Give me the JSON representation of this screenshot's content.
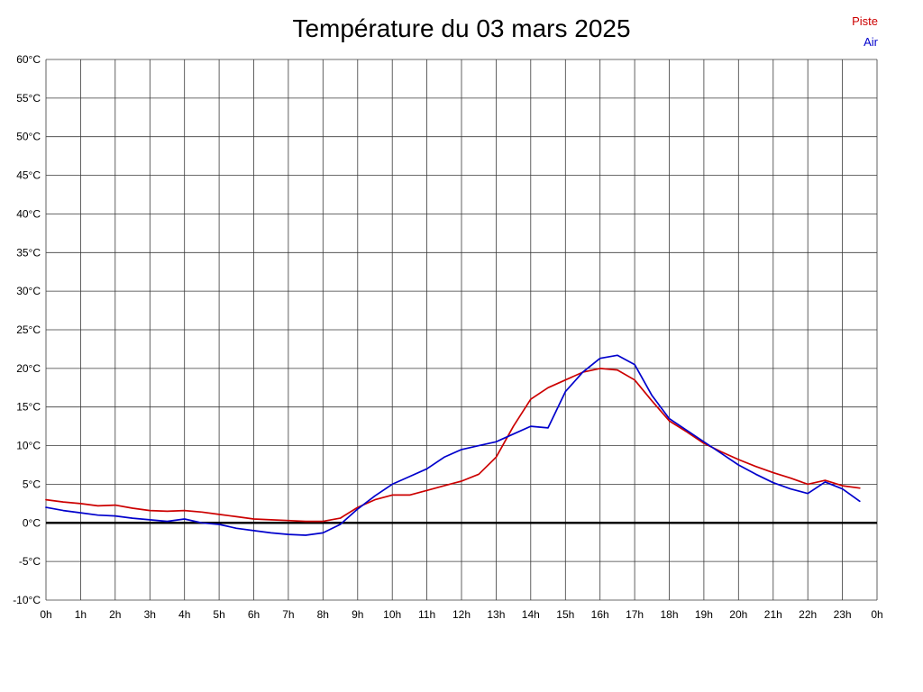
{
  "title": "Température du 03 mars 2025",
  "legend": {
    "piste_label": "Piste",
    "air_label": "Air"
  },
  "colors": {
    "piste": "#cc0000",
    "air": "#0000cc",
    "grid": "#3a3a3a",
    "zero_line": "#000000",
    "background": "#ffffff"
  },
  "chart_data": {
    "type": "line",
    "title": "Température du 03 mars 2025",
    "xlabel": "",
    "ylabel": "",
    "grid": true,
    "legend_position": "top-right",
    "xlim": [
      0,
      24
    ],
    "ylim": [
      -10,
      60
    ],
    "x_tick_step": 1,
    "y_tick_step": 5,
    "x_tick_labels": [
      "0h",
      "1h",
      "2h",
      "3h",
      "4h",
      "5h",
      "6h",
      "7h",
      "8h",
      "9h",
      "10h",
      "11h",
      "12h",
      "13h",
      "14h",
      "15h",
      "16h",
      "17h",
      "18h",
      "19h",
      "20h",
      "21h",
      "22h",
      "23h",
      "0h"
    ],
    "y_tick_labels": [
      "60°C",
      "55°C",
      "50°C",
      "45°C",
      "40°C",
      "35°C",
      "30°C",
      "25°C",
      "20°C",
      "15°C",
      "10°C",
      "5°C",
      "0°C",
      "-5°C",
      "-10°C"
    ],
    "x": [
      0,
      0.5,
      1,
      1.5,
      2,
      2.5,
      3,
      3.5,
      4,
      4.5,
      5,
      5.5,
      6,
      6.5,
      7,
      7.5,
      8,
      8.5,
      9,
      9.5,
      10,
      10.5,
      11,
      11.5,
      12,
      12.5,
      13,
      13.5,
      14,
      14.5,
      15,
      15.5,
      16,
      16.5,
      17,
      17.5,
      18,
      18.5,
      19,
      19.5,
      20,
      20.5,
      21,
      21.5,
      22,
      22.5,
      23,
      23.5
    ],
    "series": [
      {
        "name": "Piste",
        "color": "#cc0000",
        "values": [
          3.0,
          2.7,
          2.5,
          2.2,
          2.3,
          1.9,
          1.6,
          1.5,
          1.6,
          1.4,
          1.1,
          0.8,
          0.5,
          0.4,
          0.3,
          0.2,
          0.2,
          0.6,
          2.0,
          3.0,
          3.6,
          3.6,
          4.2,
          4.8,
          5.4,
          6.3,
          8.5,
          12.5,
          16.0,
          17.5,
          18.5,
          19.5,
          20.0,
          19.8,
          18.5,
          15.8,
          13.2,
          11.8,
          10.3,
          9.2,
          8.2,
          7.3,
          6.5,
          5.8,
          5.0,
          5.5,
          4.8,
          4.5
        ]
      },
      {
        "name": "Air",
        "color": "#0000cc",
        "values": [
          2.0,
          1.6,
          1.3,
          1.0,
          0.9,
          0.6,
          0.4,
          0.2,
          0.5,
          0.0,
          -0.2,
          -0.7,
          -1.0,
          -1.3,
          -1.5,
          -1.6,
          -1.3,
          -0.2,
          1.8,
          3.5,
          5.0,
          6.0,
          7.0,
          8.5,
          9.5,
          10.0,
          10.5,
          11.5,
          12.5,
          12.3,
          17.0,
          19.5,
          21.3,
          21.7,
          20.5,
          16.5,
          13.5,
          12.0,
          10.5,
          9.0,
          7.5,
          6.3,
          5.2,
          4.4,
          3.8,
          5.3,
          4.4,
          2.8
        ]
      }
    ]
  }
}
